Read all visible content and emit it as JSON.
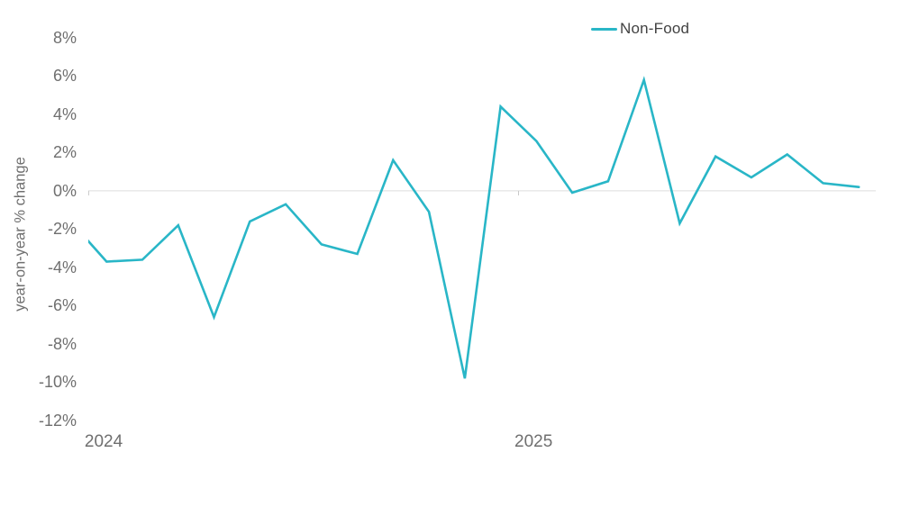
{
  "chart": {
    "legend": {
      "label": "Non-Food"
    },
    "y_axis_title": "year-on-year % change",
    "y_ticks": [
      {
        "label": "8%",
        "value": 8
      },
      {
        "label": "6%",
        "value": 6
      },
      {
        "label": "4%",
        "value": 4
      },
      {
        "label": "2%",
        "value": 2
      },
      {
        "label": "0%",
        "value": 0
      },
      {
        "label": "-2%",
        "value": -2
      },
      {
        "label": "-4%",
        "value": -4
      },
      {
        "label": "-6%",
        "value": -6
      },
      {
        "label": "-8%",
        "value": -8
      },
      {
        "label": "-10%",
        "value": -10
      },
      {
        "label": "-12%",
        "value": -12
      }
    ],
    "x_ticks": [
      {
        "label": "2024",
        "boundary_month_index": 0.5
      },
      {
        "label": "2025",
        "boundary_month_index": 12.5
      }
    ]
  },
  "chart_data": {
    "type": "line",
    "title": "",
    "xlabel": "",
    "ylabel": "year-on-year % change",
    "ylim": [
      -12,
      8
    ],
    "y_tick_step": 2,
    "grid": "only 0% horizontal gridline shown",
    "legend_position": "top-right",
    "x": [
      "Dec 2023",
      "Jan 2024",
      "Feb 2024",
      "Mar 2024",
      "Apr 2024",
      "May 2024",
      "Jun 2024",
      "Jul 2024",
      "Aug 2024",
      "Sep 2024",
      "Oct 2024",
      "Nov 2024",
      "Dec 2024",
      "Jan 2025",
      "Feb 2025",
      "Mar 2025",
      "Apr 2025",
      "May 2025",
      "Jun 2025",
      "Jul 2025",
      "Aug 2025",
      "Sep 2025",
      "Oct 2025"
    ],
    "series": [
      {
        "name": "Non-Food",
        "color": "#29b6c7",
        "values": [
          -1.6,
          -3.7,
          -3.6,
          -1.8,
          -6.6,
          -1.6,
          -0.7,
          -2.8,
          -3.3,
          1.6,
          -1.1,
          -9.8,
          4.4,
          2.6,
          -0.1,
          0.5,
          5.8,
          -1.7,
          1.8,
          0.7,
          1.9,
          0.4,
          0.2
        ]
      }
    ],
    "clip_note": "First point (Dec 2023) lies left of the plot edge; the entering segment is clipped at the Jan 2024 axis boundary."
  },
  "colors": {
    "line": "#29b6c7",
    "zero_gridline": "#dedede",
    "axis_tick": "#c9c9c9",
    "axis_text": "#6f6f6f",
    "legend_text": "#424242",
    "background": "#ffffff"
  }
}
